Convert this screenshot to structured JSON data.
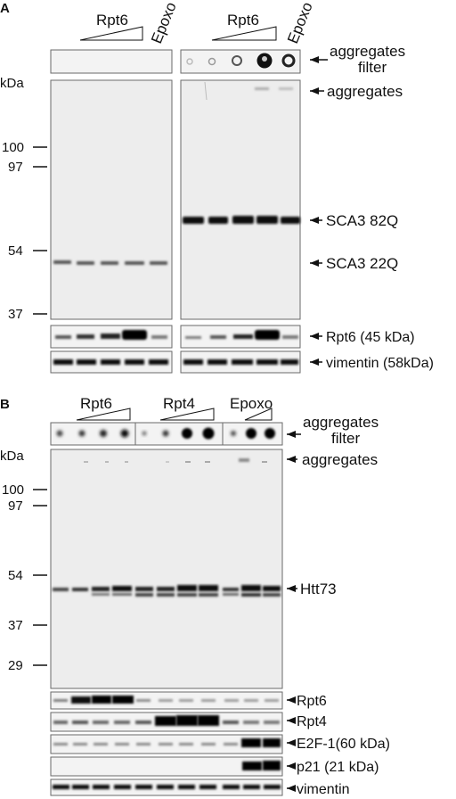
{
  "panelA": {
    "letter": "A",
    "kda_label": "kDa",
    "left_group": {
      "rpt_label": "Rpt6",
      "epoxo_label": "Epoxo"
    },
    "right_group": {
      "rpt_label": "Rpt6",
      "epoxo_label": "Epoxo"
    },
    "markers": [
      "100",
      "97",
      "54",
      "37"
    ],
    "labels": {
      "aggregates_filter": "aggregates\nfilter",
      "aggregates": "aggregates",
      "sca3_82q": "SCA3 82Q",
      "sca3_22q": "SCA3 22Q",
      "rpt6": "Rpt6 (45 kDa)",
      "vimentin": "vimentin (58kDa)"
    }
  },
  "panelB": {
    "letter": "B",
    "kda_label": "kDa",
    "group_labels": {
      "rpt6": "Rpt6",
      "rpt4": "Rpt4",
      "epoxo": "Epoxo"
    },
    "markers": [
      "100",
      "97",
      "54",
      "37",
      "29"
    ],
    "labels": {
      "aggregates_filter": "aggregates\nfilter",
      "aggregates": "aggregates",
      "htt73": "Htt73",
      "rpt6": "Rpt6",
      "rpt4": "Rpt4",
      "e2f1": "E2F-1(60 kDa)",
      "p21": "p21 (21 kDa)",
      "vimentin": "vimentin"
    }
  }
}
